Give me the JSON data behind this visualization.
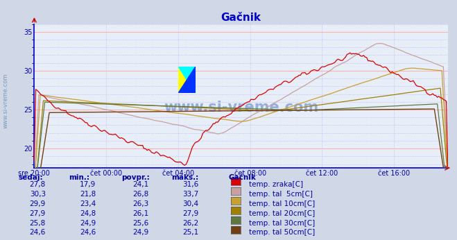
{
  "title": "Gačnik",
  "title_color": "#0000cc",
  "bg_color": "#d0d8e8",
  "plot_bg_color": "#e8eef8",
  "grid_color_major": "#ffaaaa",
  "grid_color_minor": "#aaaaff",
  "xlabel_color": "#0000aa",
  "ylabel_color": "#0000aa",
  "x_tick_labels": [
    "sre 20:00",
    "čet 00:00",
    "čet 04:00",
    "čet 08:00",
    "čet 12:00",
    "čet 16:00"
  ],
  "x_tick_positions": [
    0,
    240,
    480,
    720,
    960,
    1200
  ],
  "ylim_min": 17.5,
  "ylim_max": 36.0,
  "yticks_major": [
    20,
    25,
    30,
    35
  ],
  "total_minutes": 1380,
  "series_colors": [
    "#dd0000",
    "#c8a0a0",
    "#c8a030",
    "#a08000",
    "#607840",
    "#704010"
  ],
  "series_labels": [
    "temp. zraka[C]",
    "temp. tal  5cm[C]",
    "temp. tal 10cm[C]",
    "temp. tal 20cm[C]",
    "temp. tal 30cm[C]",
    "temp. tal 50cm[C]"
  ],
  "watermark": "www.si-vreme.com",
  "watermark_color": "#3060c0",
  "table_color": "#0000aa",
  "table_header": [
    "sedaj:",
    "min.:",
    "povpr.:",
    "maks.:"
  ],
  "station_name": "Gačnik",
  "table_data": [
    [
      27.8,
      17.9,
      24.1,
      31.6
    ],
    [
      30.3,
      21.8,
      26.8,
      33.7
    ],
    [
      29.9,
      23.4,
      26.3,
      30.4
    ],
    [
      27.9,
      24.8,
      26.1,
      27.9
    ],
    [
      25.8,
      24.9,
      25.6,
      26.2
    ],
    [
      24.6,
      24.6,
      24.9,
      25.1
    ]
  ]
}
